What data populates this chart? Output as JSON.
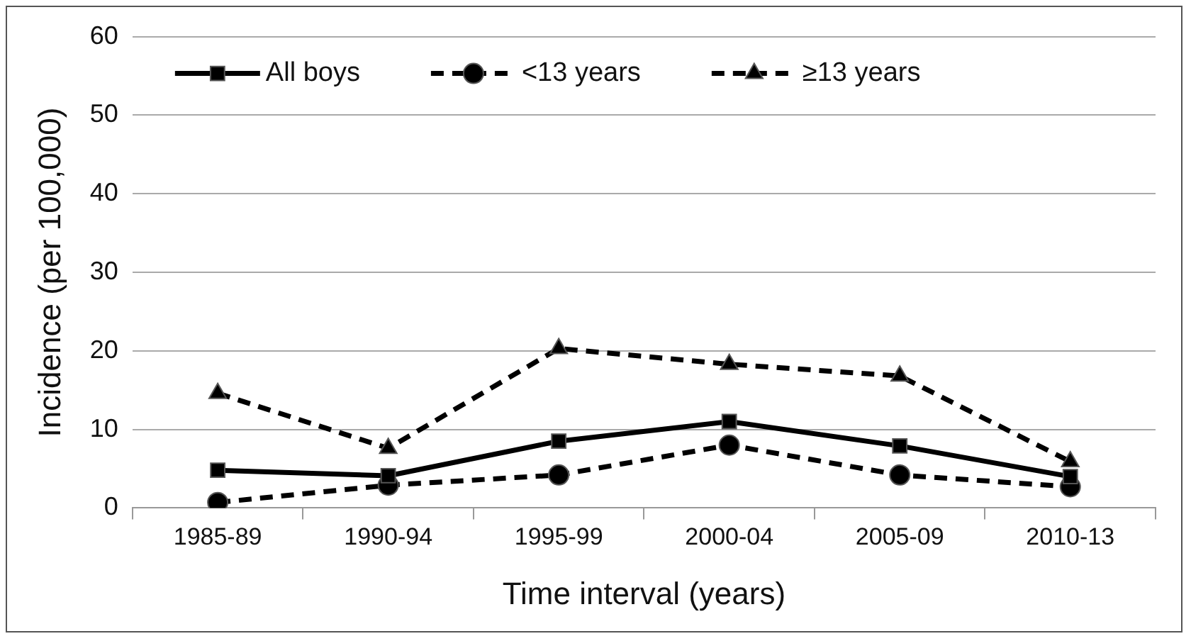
{
  "chart_data": {
    "type": "line",
    "xlabel": "Time interval (years)",
    "ylabel": "Incidence (per 100,000)",
    "categories": [
      "1985-89",
      "1990-94",
      "1995-99",
      "2000-04",
      "2005-09",
      "2010-13"
    ],
    "series": [
      {
        "name": "All boys",
        "color": "#000000",
        "marker": "square",
        "line_style": "solid",
        "values": [
          4.8,
          4.1,
          8.5,
          11.0,
          7.9,
          4.0
        ]
      },
      {
        "name": "<13 years",
        "color": "#000000",
        "marker": "circle",
        "line_style": "dashed",
        "values": [
          0.7,
          2.9,
          4.2,
          8.0,
          4.2,
          2.7
        ]
      },
      {
        "name": "≥13 years",
        "color": "#000000",
        "marker": "triangle",
        "line_style": "dashed",
        "values": [
          14.6,
          7.6,
          20.3,
          18.3,
          16.8,
          5.9
        ]
      }
    ],
    "ylim": [
      0,
      60
    ],
    "yticks": [
      0,
      10,
      20,
      30,
      40,
      50,
      60
    ],
    "grid": "y",
    "legend": "top"
  }
}
